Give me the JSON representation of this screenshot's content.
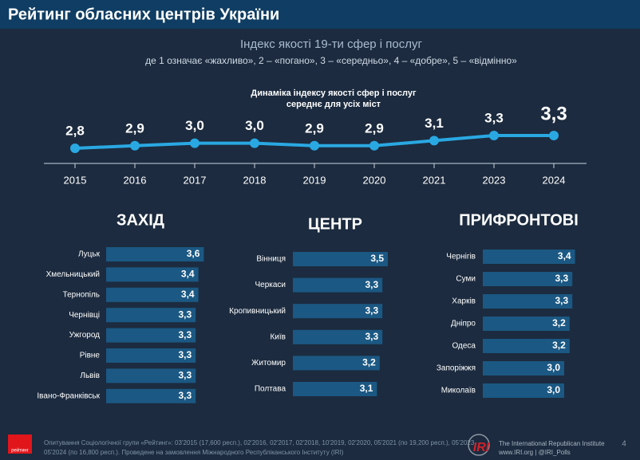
{
  "title": "Рейтинг обласних центрів України",
  "subtitle": "Індекс якості 19-ти сфер і послуг",
  "scale_note": "де 1 означає «жахливо»,  2 – «погано», 3 – «середньо», 4 – «добре», 5 – «відмінно»",
  "chart_data": [
    {
      "type": "line",
      "title": "Динаміка індексу якості сфер і послуг",
      "subtitle": "середнє для усіх міст",
      "color": "#2aa8e2",
      "categories": [
        "2015",
        "2016",
        "2017",
        "2018",
        "2019",
        "2020",
        "2021",
        "2023",
        "2024"
      ],
      "values": [
        2.8,
        2.9,
        3.0,
        3.0,
        2.9,
        2.9,
        3.1,
        3.3,
        3.3
      ],
      "value_labels": [
        "2,8",
        "2,9",
        "3,0",
        "3,0",
        "2,9",
        "2,9",
        "3,1",
        "3,3",
        "3,3"
      ]
    },
    {
      "type": "bar",
      "title": "ЗАХІД",
      "color": "#1b5883",
      "categories": [
        "Луцьк",
        "Хмельницький",
        "Тернопіль",
        "Чернівці",
        "Ужгород",
        "Рівне",
        "Львів",
        "Івано-Франківськ"
      ],
      "values": [
        3.6,
        3.4,
        3.4,
        3.3,
        3.3,
        3.3,
        3.3,
        3.3
      ],
      "value_labels": [
        "3,6",
        "3,4",
        "3,4",
        "3,3",
        "3,3",
        "3,3",
        "3,3",
        "3,3"
      ]
    },
    {
      "type": "bar",
      "title": "ЦЕНТР",
      "color": "#1b5883",
      "categories": [
        "Вінниця",
        "Черкаси",
        "Кропивницький",
        "Київ",
        "Житомир",
        "Полтава"
      ],
      "values": [
        3.5,
        3.3,
        3.3,
        3.3,
        3.2,
        3.1
      ],
      "value_labels": [
        "3,5",
        "3,3",
        "3,3",
        "3,3",
        "3,2",
        "3,1"
      ]
    },
    {
      "type": "bar",
      "title": "ПРИФРОНТОВІ",
      "color": "#1b5883",
      "categories": [
        "Чернігів",
        "Суми",
        "Харків",
        "Дніпро",
        "Одеса",
        "Запоріжжя",
        "Миколаїв"
      ],
      "values": [
        3.4,
        3.3,
        3.3,
        3.2,
        3.2,
        3.0,
        3.0
      ],
      "value_labels": [
        "3,4",
        "3,3",
        "3,3",
        "3,2",
        "3,2",
        "3,0",
        "3,0"
      ]
    }
  ],
  "footer": {
    "note": [
      "Опитування Соціологічної групи «Рейтинг»: 03'2015 (17,600 респ.), 02'2016, 02'2017, 02'2018, 10'2019, 02'2020, 05'2021 (по 19,200 респ.), 05'2023,",
      "05'2024 (по 16,800 респ.). Проведене на замовлення Міжнародного Республіканського Інституту (IRI)"
    ],
    "rating_logo": "рейтинг",
    "iri_logo": "IRI",
    "institute": "The International Republican Institute",
    "links": "www.IRI.org | @IRI_Polls",
    "page": "4"
  }
}
